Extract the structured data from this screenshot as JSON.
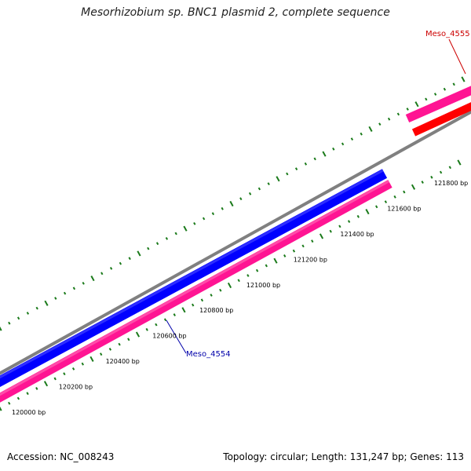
{
  "title": "Mesorhizobium sp. BNC1 plasmid 2, complete sequence",
  "footer": {
    "accession": "Accession: NC_008243",
    "summary": "Topology: circular; Length: 131,247 bp; Genes: 113"
  },
  "tick_labels": [
    "120000 bp",
    "120200 bp",
    "120400 bp",
    "120600 bp",
    "120800 bp",
    "121000 bp",
    "121200 bp",
    "121400 bp",
    "121600 bp",
    "121800 bp"
  ],
  "genes": [
    {
      "name": "Meso_4554",
      "color": "#0000aa"
    },
    {
      "name": "Meso_4555",
      "color": "#cc0000"
    }
  ],
  "colors": {
    "backbone": "#808080",
    "forward_cds": "#0000ff",
    "reverse_cds": "#ff1493",
    "gene_feature": "#ff0000",
    "ticks": "#1a7a1a"
  }
}
